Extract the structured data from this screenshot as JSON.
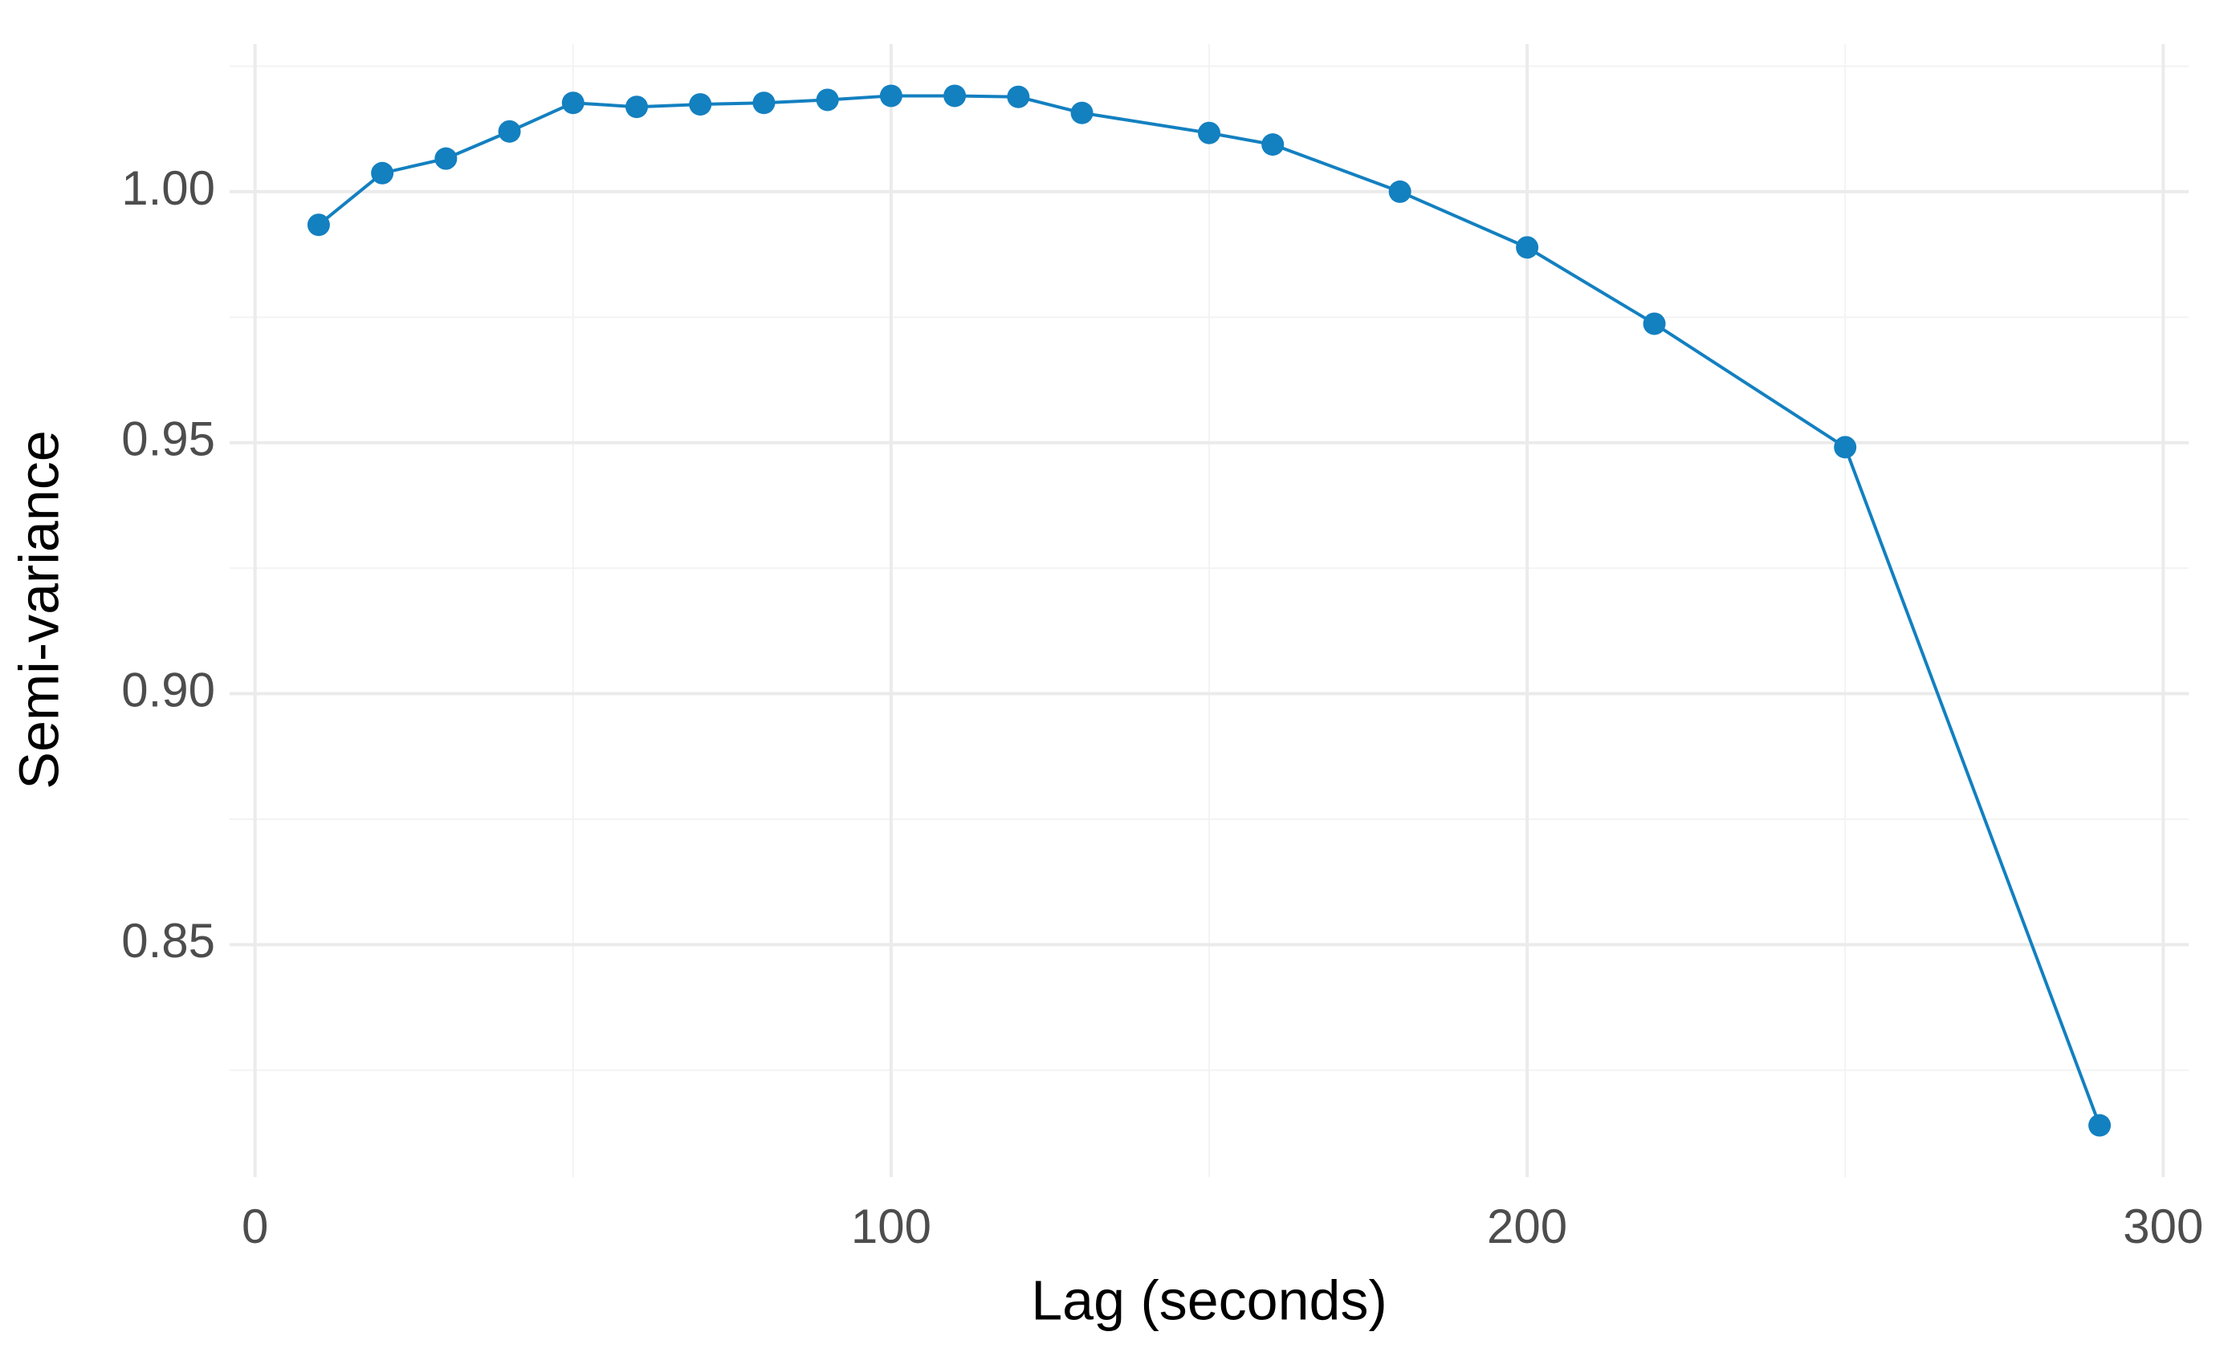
{
  "chart_data": {
    "type": "line",
    "x_label": "Lag (seconds)",
    "y_label": "Semi-variance",
    "x": [
      10,
      20,
      30,
      40,
      50,
      60,
      70,
      80,
      90,
      100,
      110,
      120,
      130,
      150,
      160,
      180,
      200,
      220,
      250,
      290
    ],
    "series": [
      {
        "name": "Semi-variance",
        "color": "#1380c0",
        "values": [
          0.9934,
          1.0037,
          1.0066,
          1.012,
          1.0177,
          1.0169,
          1.0174,
          1.0177,
          1.0183,
          1.0191,
          1.0191,
          1.0189,
          1.0157,
          1.0117,
          1.0094,
          1.0,
          0.9889,
          0.9737,
          0.9491,
          0.814
        ]
      }
    ],
    "xlim": [
      -4,
      304
    ],
    "ylim": [
      0.8037,
      1.0294
    ],
    "xticks": [
      0,
      100,
      200,
      300
    ],
    "yticks": [
      {
        "value": 0.85,
        "label": "0.85"
      },
      {
        "value": 0.9,
        "label": "0.90"
      },
      {
        "value": 0.95,
        "label": "0.95"
      },
      {
        "value": 1.0,
        "label": "1.00"
      }
    ],
    "xminor": [
      50,
      150,
      250
    ],
    "yminor": [
      0.825,
      0.875,
      0.925,
      0.975,
      1.025
    ],
    "grid": true,
    "markers": true
  }
}
